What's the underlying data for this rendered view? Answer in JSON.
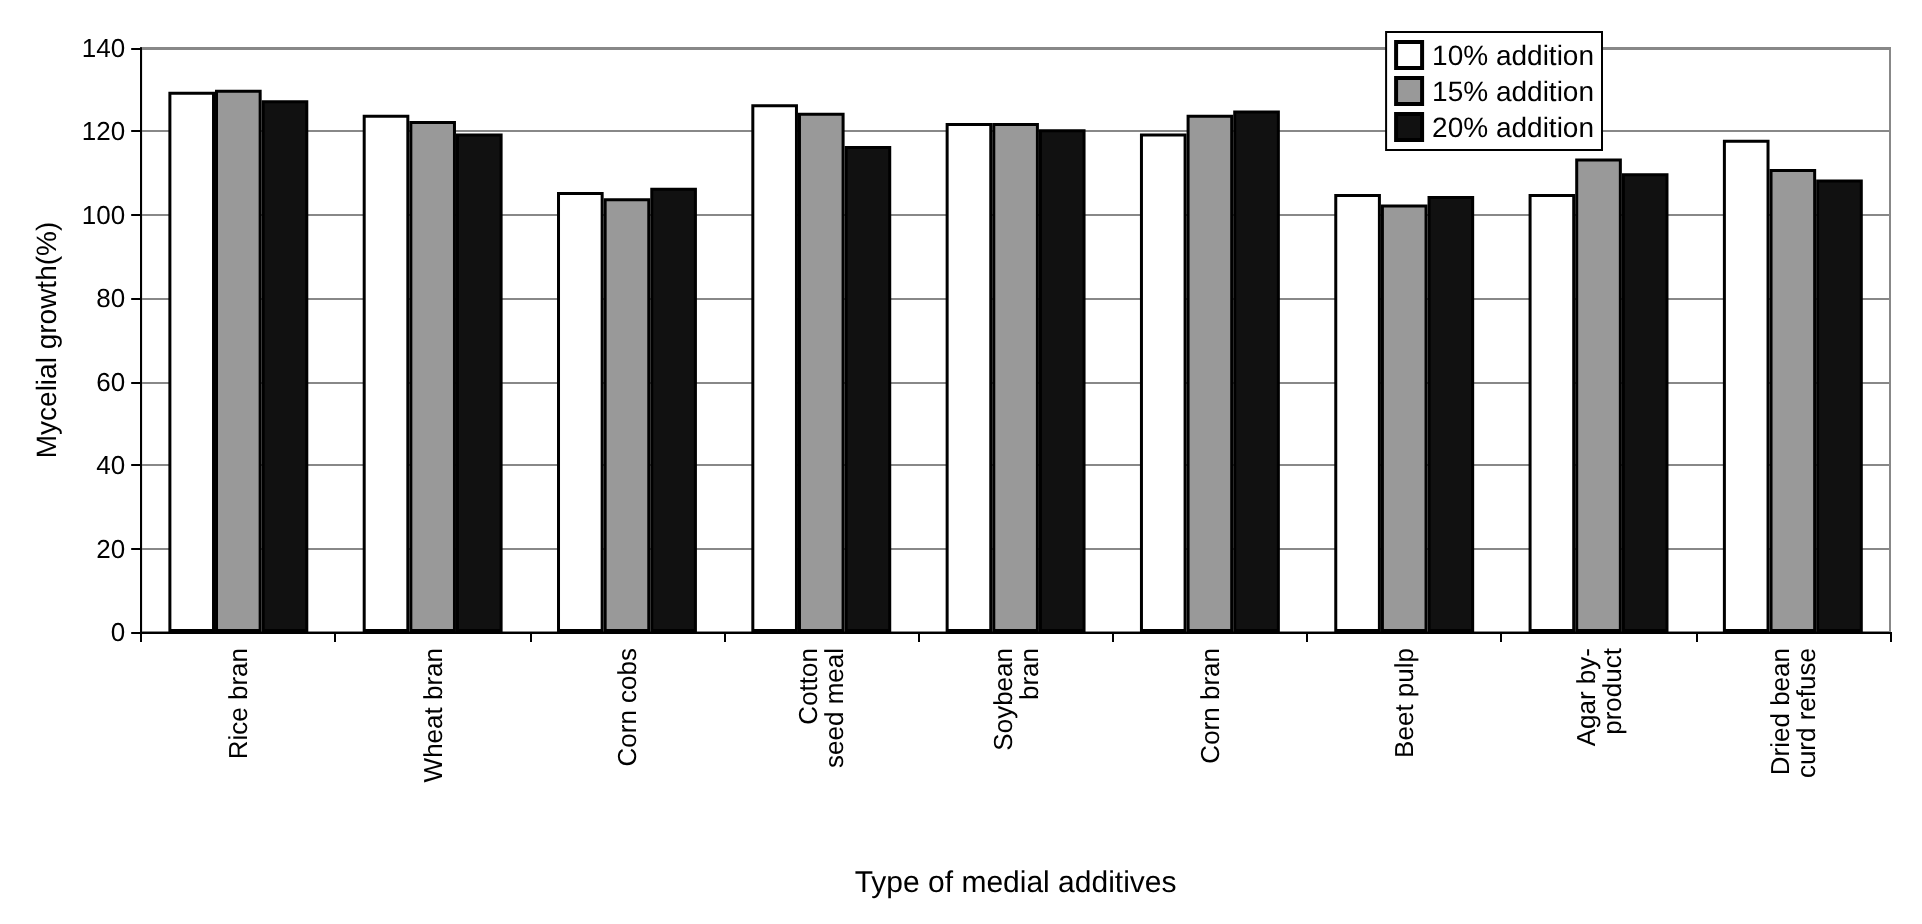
{
  "chart_data": {
    "type": "bar",
    "xlabel": "Type of medial additives",
    "ylabel": "Mycelial growth(%)",
    "categories": [
      "Rice bran",
      "Wheat bran",
      "Corn cobs",
      "Cotton\nseed meal",
      "Soybean\nbran",
      "Corn bran",
      "Beet pulp",
      "Agar by-\nproduct",
      "Dried bean\ncurd refuse"
    ],
    "series": [
      {
        "name": "10% addition",
        "color": "#ffffff",
        "values": [
          129.5,
          124,
          105.5,
          126.5,
          122,
          119.5,
          105,
          105,
          118
        ]
      },
      {
        "name": "15% addition",
        "color": "#999999",
        "values": [
          130,
          122.5,
          104,
          124.5,
          122,
          124,
          102.5,
          113.5,
          111
        ]
      },
      {
        "name": "20% addition",
        "color": "#111111",
        "values": [
          127.5,
          119.5,
          106.5,
          116.5,
          120.5,
          125,
          104.5,
          110,
          108.5
        ]
      }
    ],
    "ylim": [
      0,
      140
    ],
    "yticks": [
      0,
      20,
      40,
      60,
      80,
      100,
      120,
      140
    ],
    "grid": "y",
    "legend": "top right"
  }
}
